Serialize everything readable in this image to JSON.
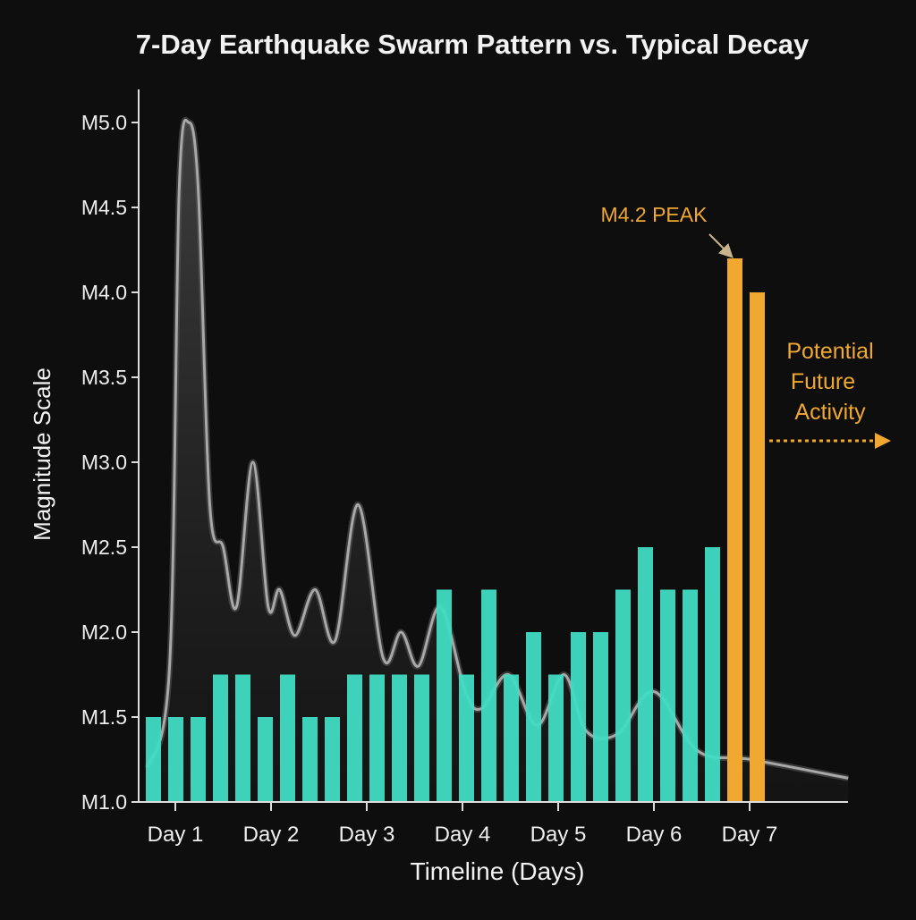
{
  "chart_data": {
    "type": "bar",
    "title": "7-Day Earthquake Swarm Pattern vs. Typical Decay",
    "xlabel": "Timeline (Days)",
    "ylabel": "Magnitude Scale",
    "ylim": [
      1.0,
      5.0
    ],
    "yticks": [
      "M1.0",
      "M1.5",
      "M2.0",
      "M2.5",
      "M3.0",
      "M3.5",
      "M4.0",
      "M4.5",
      "M5.0"
    ],
    "ytick_values": [
      1.0,
      1.5,
      2.0,
      2.5,
      3.0,
      3.5,
      4.0,
      4.5,
      5.0
    ],
    "xticks": [
      "Day 1",
      "Day 2",
      "Day 3",
      "Day 4",
      "Day 5",
      "Day 6",
      "Day 7"
    ],
    "grid": false,
    "colors": {
      "background": "#0e0e0e",
      "swarm": "#40dcc4",
      "peak": "#f0a830",
      "decay": "#9a9a9a"
    },
    "swarm_bars": [
      1.5,
      1.5,
      1.5,
      1.75,
      1.75,
      1.5,
      1.75,
      1.5,
      1.5,
      1.75,
      1.75,
      1.75,
      1.75,
      2.25,
      1.75,
      2.25,
      1.75,
      2.0,
      1.75,
      2.0,
      2.0,
      2.25,
      2.5,
      2.25,
      2.25,
      2.5
    ],
    "peak_bars": [
      4.2,
      4.0
    ],
    "decay_curve": {
      "x_days": [
        0.71,
        0.94,
        1.04,
        1.14,
        1.24,
        1.36,
        1.5,
        1.64,
        1.81,
        1.97,
        2.09,
        2.25,
        2.46,
        2.67,
        2.91,
        3.17,
        3.36,
        3.54,
        3.77,
        4.03,
        4.2,
        4.48,
        4.78,
        5.06,
        5.29,
        5.62,
        6.0,
        6.46,
        7.02,
        8.03
      ],
      "magnitude": [
        1.2,
        1.8,
        4.6,
        5.0,
        4.6,
        2.75,
        2.5,
        2.15,
        3.0,
        2.15,
        2.25,
        1.98,
        2.25,
        1.95,
        2.75,
        1.85,
        2.0,
        1.8,
        2.15,
        1.65,
        1.55,
        1.75,
        1.45,
        1.75,
        1.42,
        1.4,
        1.65,
        1.3,
        1.25,
        1.14
      ]
    },
    "annotations": {
      "peak_label": "M4.2 PEAK",
      "future_lines": [
        "Potential",
        "Future",
        "Activity"
      ]
    }
  }
}
